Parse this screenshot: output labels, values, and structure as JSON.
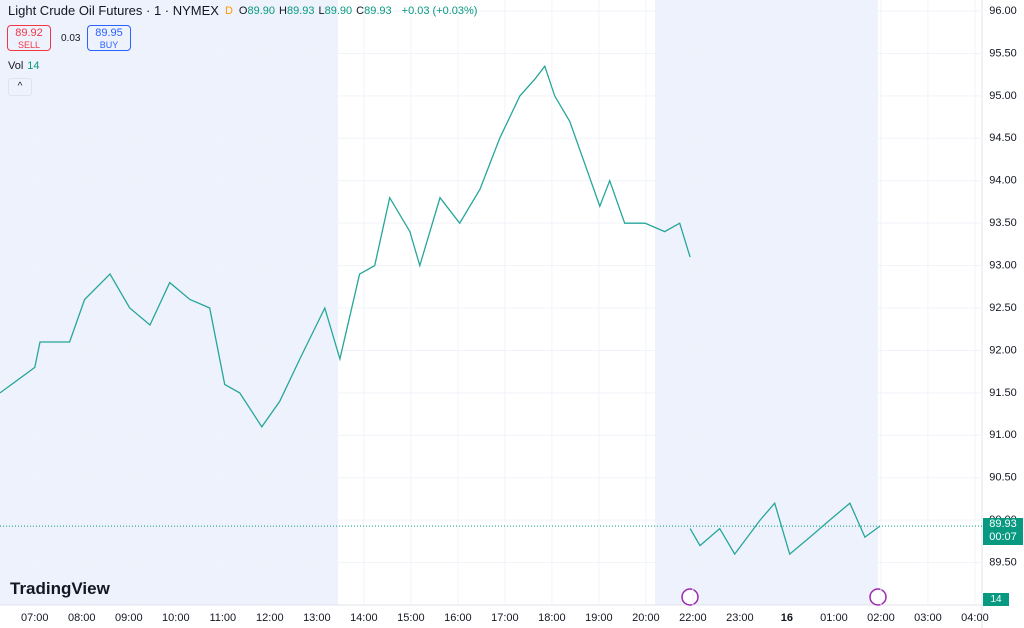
{
  "header": {
    "symbol": "Light Crude Oil Futures · 1 · NYMEX",
    "flag": "D",
    "ohlc": [
      {
        "label": "O",
        "value": "89.90"
      },
      {
        "label": "H",
        "value": "89.93"
      },
      {
        "label": "L",
        "value": "89.90"
      },
      {
        "label": "C",
        "value": "89.93"
      }
    ],
    "change": "+0.03 (+0.03%)",
    "sell_price": "89.92",
    "sell_label": "SELL",
    "spread": "0.03",
    "buy_price": "89.95",
    "buy_label": "BUY",
    "vol_label": "Vol",
    "vol_value": "14",
    "logo": "TradingView"
  },
  "price_label": {
    "price": "89.93",
    "countdown": "00:07",
    "volume": "14"
  },
  "chart_data": {
    "type": "line",
    "color": "#26a69a",
    "x": [
      -0.74,
      0,
      0.11,
      0.74,
      1.06,
      1.6,
      2.02,
      2.45,
      2.87,
      3.3,
      3.72,
      4.04,
      4.36,
      4.83,
      5.21,
      5.64,
      6.17,
      6.49,
      6.91,
      7.23,
      7.55,
      7.98,
      8.19,
      8.62,
      9.04,
      9.47,
      9.89,
      10.32,
      10.64,
      10.85,
      11.06,
      11.38,
      11.7,
      12.02,
      12.23,
      12.55,
      12.98,
      13.4,
      13.72,
      13.94,
      13.94,
      13.94,
      14.15,
      14.57,
      14.89,
      15.43,
      15.74,
      16.06,
      16.49,
      16.91,
      17.34,
      17.66,
      17.98
    ],
    "values": [
      91.5,
      91.8,
      92.1,
      92.1,
      92.6,
      92.9,
      92.5,
      92.3,
      92.8,
      92.6,
      92.5,
      91.6,
      91.5,
      91.1,
      91.4,
      91.9,
      92.5,
      91.9,
      92.9,
      93.0,
      93.8,
      93.4,
      93.0,
      93.8,
      93.5,
      93.9,
      94.5,
      95.0,
      95.2,
      95.35,
      95.0,
      94.7,
      94.2,
      93.7,
      94.0,
      93.5,
      93.5,
      93.4,
      93.5,
      93.1,
      null,
      89.9,
      89.7,
      89.9,
      89.6,
      90.0,
      90.2,
      89.6,
      89.8,
      90.0,
      90.2,
      89.8,
      89.93
    ],
    "xlim": [
      -0.74,
      20.15
    ],
    "xticks": [
      {
        "value": 0,
        "label": "07:00"
      },
      {
        "value": 1,
        "label": "08:00"
      },
      {
        "value": 2,
        "label": "09:00"
      },
      {
        "value": 3,
        "label": "10:00"
      },
      {
        "value": 4,
        "label": "11:00"
      },
      {
        "value": 5,
        "label": "12:00"
      },
      {
        "value": 6,
        "label": "13:00"
      },
      {
        "value": 7,
        "label": "14:00"
      },
      {
        "value": 8,
        "label": "15:00"
      },
      {
        "value": 9,
        "label": "16:00"
      },
      {
        "value": 10,
        "label": "17:00"
      },
      {
        "value": 11,
        "label": "18:00"
      },
      {
        "value": 12,
        "label": "19:00"
      },
      {
        "value": 13,
        "label": "20:00"
      },
      {
        "value": 14,
        "label": "22:00"
      },
      {
        "value": 15,
        "label": "23:00"
      },
      16,
      {
        "value": 17,
        "label": "01:00"
      },
      {
        "value": 18,
        "label": "02:00"
      },
      {
        "value": 19,
        "label": "03:00"
      },
      {
        "value": 20,
        "label": "04:00"
      }
    ],
    "ylim": [
      89.0,
      96.13
    ],
    "yticks": [
      {
        "value": 89.5,
        "label": "89.50"
      },
      {
        "value": 90,
        "label": "90.00"
      },
      {
        "value": 90.5,
        "label": "90.50"
      },
      {
        "value": 91,
        "label": "91.00"
      },
      {
        "value": 91.5,
        "label": "91.50"
      },
      {
        "value": 92,
        "label": "92.00"
      },
      {
        "value": 92.5,
        "label": "92.50"
      },
      {
        "value": 93,
        "label": "93.00"
      },
      {
        "value": 93.5,
        "label": "93.50"
      },
      {
        "value": 94,
        "label": "94.00"
      },
      {
        "value": 94.5,
        "label": "94.50"
      },
      {
        "value": 95,
        "label": "95.00"
      },
      {
        "value": 95.5,
        "label": "95.50"
      },
      {
        "value": 96,
        "label": "96.00"
      }
    ],
    "grid": true
  }
}
